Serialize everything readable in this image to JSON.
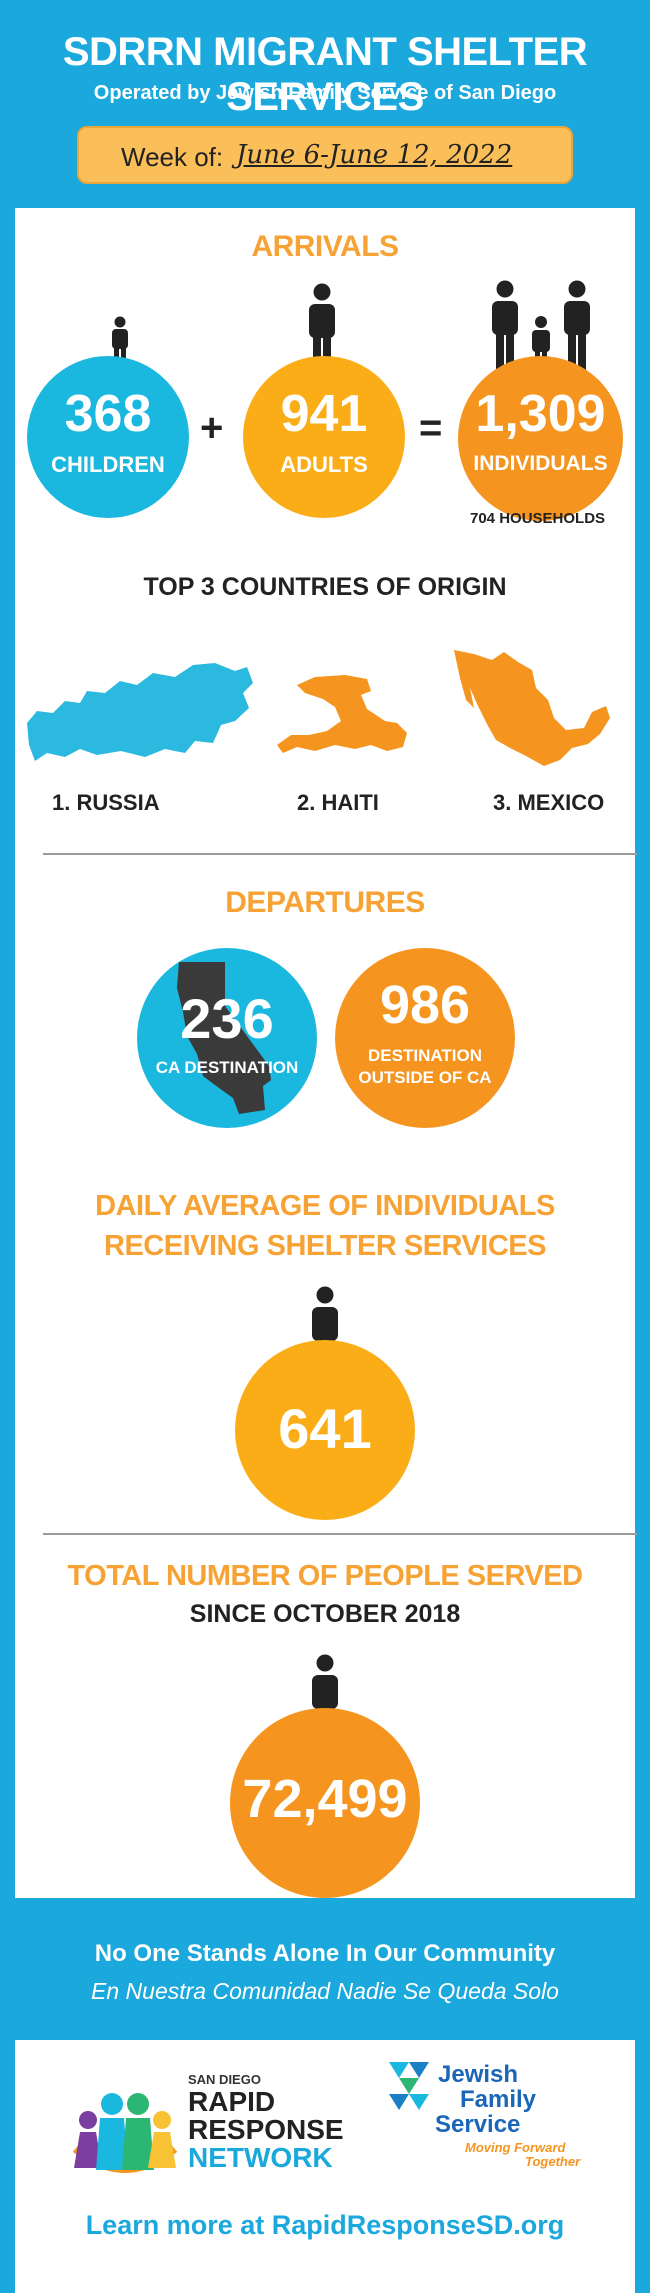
{
  "header": {
    "title": "SDRRN MIGRANT SHELTER SERVICES",
    "subtitle": "Operated by Jewish Family Service of San Diego",
    "week_label": "Week of:",
    "week_value": "June 6-June 12, 2022"
  },
  "arrivals": {
    "heading": "ARRIVALS",
    "children": {
      "value": "368",
      "label": "CHILDREN"
    },
    "plus": "+",
    "adults": {
      "value": "941",
      "label": "ADULTS"
    },
    "equals": "=",
    "individuals": {
      "value": "1,309",
      "label": "INDIVIDUALS"
    },
    "households": "704 HOUSEHOLDS"
  },
  "countries": {
    "heading": "TOP 3 COUNTRIES OF ORIGIN",
    "items": [
      "1. RUSSIA",
      "2. HAITI",
      "3. MEXICO"
    ]
  },
  "departures": {
    "heading": "DEPARTURES",
    "ca": {
      "value": "236",
      "label": "CA DESTINATION"
    },
    "outside": {
      "value": "986",
      "label_1": "DESTINATION",
      "label_2": "OUTSIDE OF CA"
    }
  },
  "daily": {
    "heading_1": "DAILY AVERAGE OF INDIVIDUALS",
    "heading_2": "RECEIVING SHELTER SERVICES",
    "value": "641"
  },
  "total": {
    "heading": "TOTAL NUMBER OF PEOPLE SERVED",
    "subheading": "SINCE OCTOBER 2018",
    "value": "72,499"
  },
  "footer": {
    "tagline_en": "No One Stands Alone In Our Community",
    "tagline_es": "En Nuestra Comunidad Nadie Se Queda Solo",
    "rrn_small": "SAN DIEGO",
    "rrn_1": "RAPID",
    "rrn_2": "RESPONSE",
    "rrn_3": "NETWORK",
    "jfs_1": "Jewish",
    "jfs_2": "Family",
    "jfs_3": "Service",
    "jfs_tag_1": "Moving Forward",
    "jfs_tag_2": "Together",
    "learn_more": "Learn more at RapidResponseSD.org"
  },
  "colors": {
    "background_blue": "#1aa8dd",
    "circle_blue": "#1ab7df",
    "orange": "#f59520",
    "amber": "#fbad18",
    "heading_orange": "#f7a234",
    "map_blue": "#2cb9e0",
    "dark": "#222222"
  },
  "icons": [
    "person-icon",
    "family-icon",
    "russia-map",
    "haiti-map",
    "mexico-map",
    "california-map",
    "rrn-logo",
    "jfs-logo"
  ]
}
